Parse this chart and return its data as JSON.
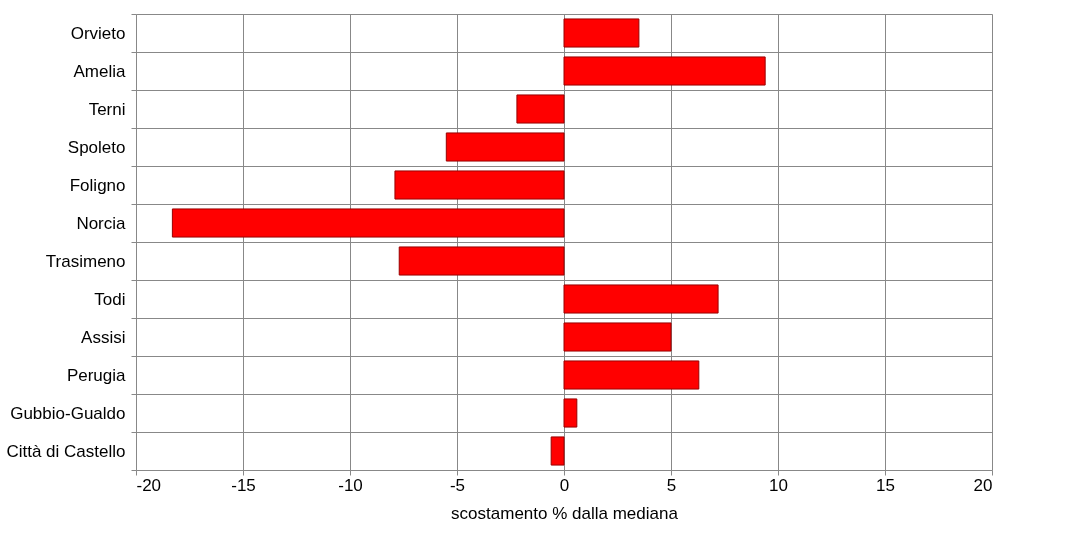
{
  "chart_data": {
    "type": "bar",
    "orientation": "horizontal",
    "xlabel": "scostamento % dalla mediana",
    "categories": [
      "Orvieto",
      "Amelia",
      "Terni",
      "Spoleto",
      "Foligno",
      "Norcia",
      "Trasimeno",
      "Todi",
      "Assisi",
      "Perugia",
      "Gubbio-Gualdo",
      "Città di Castello"
    ],
    "values": [
      3.5,
      9.4,
      -2.2,
      -5.5,
      -7.9,
      -18.3,
      -7.7,
      7.2,
      5.0,
      6.3,
      0.6,
      -0.6
    ],
    "color": "#ff0000",
    "xlim": [
      -20,
      20
    ],
    "xticks": [
      -20,
      -15,
      -10,
      -5,
      0,
      5,
      10,
      15,
      20
    ],
    "grid": true
  }
}
